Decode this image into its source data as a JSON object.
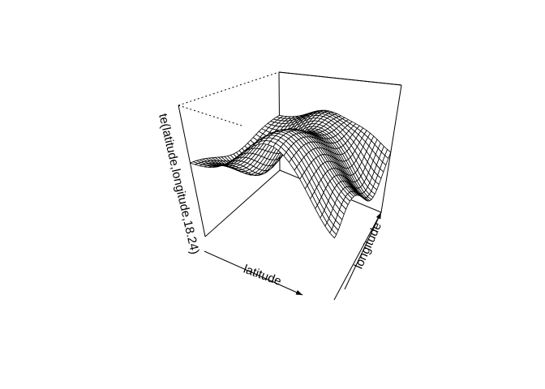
{
  "chart_data": {
    "type": "surface",
    "title": "",
    "xlabel": "latitude",
    "ylabel": "longitude",
    "zlabel": "te(latitude,longitude,18.24)",
    "view": "perspective",
    "grid_resolution": [
      30,
      30
    ],
    "colors": {
      "mesh": "#000000",
      "fill": "#ffffff",
      "box": "#000000"
    }
  }
}
